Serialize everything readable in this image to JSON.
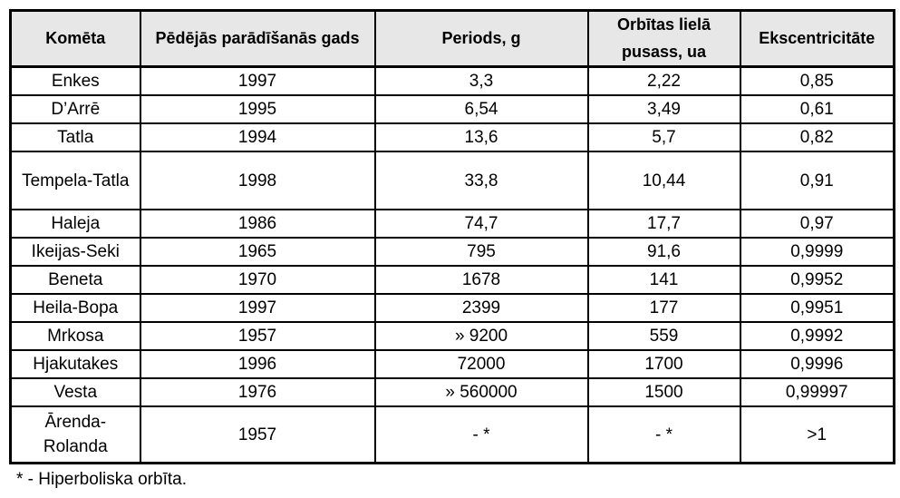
{
  "table": {
    "headers": [
      "Komēta",
      "Pēdējās parādīšanās gads",
      "Periods, g",
      "Orbītas lielā pusass, ua",
      "Ekscentricitāte"
    ],
    "rows": [
      [
        "Enkes",
        "1997",
        "3,3",
        "2,22",
        "0,85"
      ],
      [
        "D’Arrē",
        "1995",
        "6,54",
        "3,49",
        "0,61"
      ],
      [
        "Tatla",
        "1994",
        "13,6",
        "5,7",
        "0,82"
      ],
      [
        "Tempela-Tatla",
        "1998",
        "33,8",
        "10,44",
        "0,91"
      ],
      [
        "Haleja",
        "1986",
        "74,7",
        "17,7",
        "0,97"
      ],
      [
        "Ikeijas-Seki",
        "1965",
        "795",
        "91,6",
        "0,9999"
      ],
      [
        "Beneta",
        "1970",
        "1678",
        "141",
        "0,9952"
      ],
      [
        "Heila-Bopa",
        "1997",
        "2399",
        "177",
        "0,9951"
      ],
      [
        "Mrkosa",
        "1957",
        "» 9200",
        "559",
        "0,9992"
      ],
      [
        "Hjakutakes",
        "1996",
        "72000",
        "1700",
        "0,9996"
      ],
      [
        "Vesta",
        "1976",
        "» 560000",
        "1500",
        "0,99997"
      ],
      [
        "Ārenda-Rolanda",
        "1957",
        "- *",
        "- *",
        ">1"
      ]
    ]
  },
  "footnote": "* - Hiperboliska orbīta.",
  "colors": {
    "header_bg": "#e7e7e7",
    "border": "#000000",
    "text": "#000000",
    "page_bg": "#ffffff"
  }
}
